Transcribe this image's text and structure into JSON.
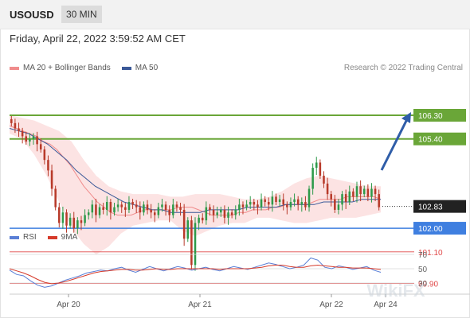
{
  "header": {
    "symbol": "USOUSD",
    "timeframe": "30 MIN"
  },
  "date_line": "Friday, April 22, 2022 3:59:52 AM CET",
  "legend": {
    "main": [
      {
        "label": "MA 20 + Bollinger Bands",
        "color": "#f08c8c"
      },
      {
        "label": "MA 50",
        "color": "#3b5998"
      }
    ],
    "rsi": [
      {
        "label": "RSI",
        "color": "#5a7fd6"
      },
      {
        "label": "9MA",
        "color": "#d63a2a"
      }
    ]
  },
  "credit": "Research © 2022 Trading Central",
  "watermark": "WikiFX",
  "colors": {
    "up": "#2e9a4a",
    "down": "#b83a2a",
    "bollinger": "#fbdcdc",
    "support": "#3f7fe0",
    "resistance": "#6aa638",
    "target": "#e04848",
    "arrow": "#2f5da8"
  },
  "chart_data": [
    {
      "type": "candlestick",
      "title": "",
      "ylim": [
        99.5,
        107.2
      ],
      "x_ticks": [
        "Apr 20",
        "Apr 21",
        "Apr 22",
        "Apr 24"
      ],
      "current_price": 102.83,
      "levels": [
        {
          "value": 106.3,
          "label": "106.30",
          "kind": "resistance"
        },
        {
          "value": 105.4,
          "label": "105.40",
          "kind": "resistance"
        },
        {
          "value": 102.0,
          "label": "102.00",
          "kind": "pivot"
        },
        {
          "value": 101.1,
          "label": "101.10",
          "kind": "support"
        },
        {
          "value": 99.9,
          "label": "99.90",
          "kind": "support"
        }
      ],
      "close_series": [
        106.0,
        105.8,
        105.7,
        105.5,
        105.3,
        105.4,
        105.5,
        105.2,
        105.0,
        104.6,
        104.2,
        103.5,
        102.8,
        102.2,
        102.6,
        102.1,
        102.4,
        102.0,
        102.3,
        102.2,
        102.5,
        102.6,
        102.9,
        102.5,
        102.8,
        102.7,
        103.0,
        102.6,
        102.8,
        102.9,
        102.8,
        102.7,
        103.0,
        102.9,
        102.8,
        102.6,
        102.9,
        102.7,
        102.6,
        102.5,
        102.8,
        102.9,
        102.7,
        102.5,
        102.9,
        102.8,
        102.7,
        101.6,
        102.3,
        100.6,
        102.2,
        102.4,
        102.3,
        102.8,
        102.7,
        102.5,
        102.6,
        102.7,
        102.4,
        102.6,
        102.5,
        102.7,
        102.9,
        102.8,
        102.9,
        103.0,
        102.9,
        102.8,
        103.1,
        103.0,
        102.9,
        103.2,
        103.0,
        103.1,
        102.9,
        102.8,
        103.0,
        103.1,
        102.9,
        103.0,
        102.8,
        103.5,
        104.3,
        104.5,
        104.0,
        103.7,
        103.3,
        103.1,
        102.7,
        102.9,
        103.3,
        103.0,
        103.4,
        103.2,
        103.6,
        103.3,
        103.5,
        103.2,
        103.5,
        103.3,
        102.8
      ],
      "ma20": [
        105.9,
        105.8,
        105.7,
        105.6,
        105.5,
        105.3,
        105.2,
        105.0,
        104.7,
        104.4,
        104.0,
        103.6,
        103.3,
        103.0,
        102.8,
        102.6,
        102.5,
        102.5,
        102.5,
        102.6,
        102.7,
        102.7,
        102.7,
        102.7,
        102.7,
        102.8,
        102.8,
        102.8,
        102.7,
        102.6,
        102.5,
        102.5,
        102.5,
        102.5,
        102.6,
        102.6,
        102.7,
        102.7,
        102.7,
        102.8,
        102.8,
        102.9,
        102.9,
        102.9,
        102.9,
        103.0,
        103.1,
        103.1,
        103.1,
        103.1,
        103.2,
        103.2,
        103.2,
        103.2,
        103.2,
        103.1
      ],
      "ma50": [
        105.8,
        105.7,
        105.6,
        105.4,
        105.2,
        104.9,
        104.6,
        104.2,
        103.9,
        103.6,
        103.4,
        103.2,
        103.0,
        102.9,
        102.8,
        102.7,
        102.7,
        102.6,
        102.6,
        102.6,
        102.6,
        102.7,
        102.7,
        102.7,
        102.7,
        102.8,
        102.8,
        102.8,
        102.8,
        102.9,
        102.9,
        102.9,
        102.9,
        103.0,
        103.0,
        103.0,
        103.0,
        103.1,
        103.1,
        103.1
      ],
      "bb_upper": [
        106.3,
        106.2,
        106.1,
        105.9,
        105.7,
        105.3,
        104.6,
        104.0,
        103.6,
        103.4,
        103.3,
        103.3,
        103.3,
        103.2,
        103.2,
        103.3,
        103.3,
        103.3,
        103.2,
        103.1,
        103.1,
        103.2,
        103.4,
        103.7,
        103.9,
        104.0,
        103.9,
        103.8,
        103.7,
        103.6,
        103.6
      ],
      "bb_lower": [
        105.6,
        105.4,
        104.8,
        104.0,
        103.0,
        102.0,
        101.4,
        101.0,
        101.3,
        101.8,
        102.1,
        102.2,
        102.3,
        102.3,
        101.9,
        101.7,
        101.9,
        102.1,
        102.2,
        102.2,
        102.4,
        102.4,
        102.3,
        102.2,
        102.2,
        102.3,
        102.4,
        102.4,
        102.4,
        102.5,
        102.6
      ]
    },
    {
      "type": "line",
      "title": "RSI",
      "ylim": [
        15,
        80
      ],
      "y_ticks": [
        30,
        50,
        70
      ],
      "series": [
        {
          "name": "RSI",
          "values": [
            48,
            42,
            40,
            33,
            27,
            24,
            26,
            30,
            34,
            37,
            40,
            44,
            46,
            48,
            47,
            50,
            52,
            48,
            45,
            49,
            53,
            50,
            47,
            50,
            53,
            51,
            48,
            50,
            52,
            49,
            47,
            50,
            53,
            51,
            49,
            52,
            55,
            58,
            56,
            53,
            50,
            52,
            55,
            65,
            62,
            52,
            50,
            54,
            52,
            49,
            51,
            53,
            48,
            45
          ]
        },
        {
          "name": "9MA",
          "values": [
            50,
            47,
            44,
            40,
            35,
            31,
            29,
            30,
            32,
            35,
            38,
            41,
            44,
            46,
            47,
            48,
            49,
            49,
            48,
            48,
            49,
            50,
            49,
            49,
            50,
            50,
            50,
            50,
            50,
            50,
            49,
            50,
            50,
            50,
            50,
            51,
            52,
            54,
            55,
            55,
            53,
            52,
            52,
            54,
            55,
            54,
            53,
            52,
            52,
            51,
            51,
            51,
            50,
            49
          ]
        }
      ]
    }
  ]
}
